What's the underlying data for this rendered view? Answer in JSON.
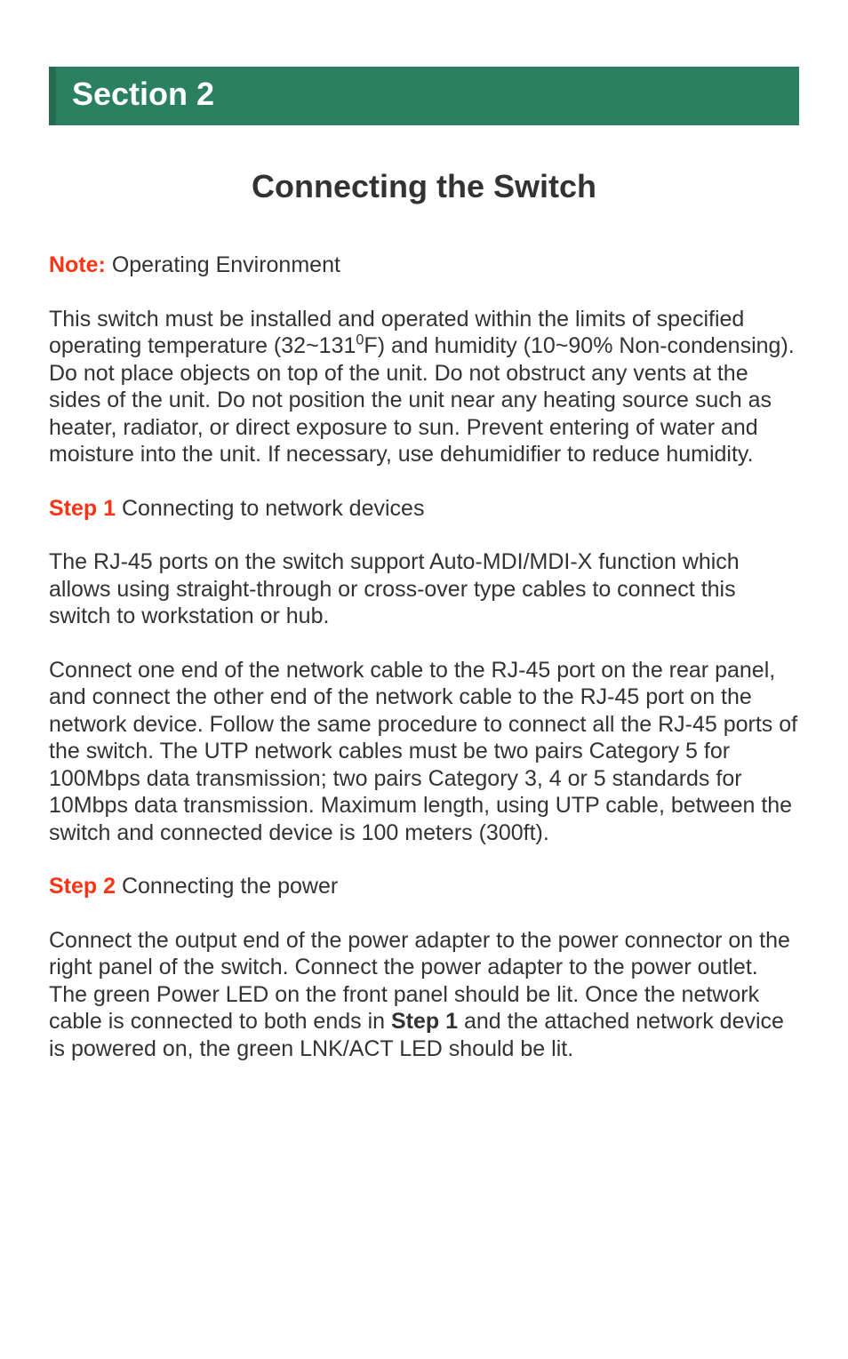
{
  "colors": {
    "banner_bg": "#2a8060",
    "banner_border": "#246b51",
    "banner_text": "#ffffff",
    "body_text": "#333333",
    "accent_red": "#fa3516",
    "page_bg": "#ffffff"
  },
  "typography": {
    "banner_fontsize": 36,
    "title_fontsize": 36,
    "body_fontsize": 25,
    "line_height": 1.22
  },
  "banner": {
    "label": "Section 2"
  },
  "title": "Connecting the Switch",
  "note": {
    "label": "Note:",
    "heading": " Operating Environment",
    "body_pre": "This switch must be installed and operated within the limits of specified operating temperature (32~131",
    "body_sup": "0",
    "body_post": "F) and humidity (10~90% Non-condensing). Do not place objects on top of the unit. Do not obstruct any vents at the sides of the unit. Do not position the unit near any heating source such as heater, radiator, or direct exposure to sun. Prevent entering of water and moisture into the unit. If necessary, use dehumidifier to reduce humidity."
  },
  "step1": {
    "label": "Step 1",
    "heading": " Connecting to network devices",
    "para1": "The RJ-45 ports on the switch support Auto-MDI/MDI-X function which allows using straight-through or cross-over type cables to connect this switch to workstation or hub.",
    "para2": "Connect one end of the network cable to the RJ-45 port on the rear panel, and connect the other end of the network cable to the RJ-45 port on the network device. Follow the same procedure to connect all the RJ-45 ports of the switch. The UTP network cables must be two pairs Category 5 for 100Mbps data transmission; two pairs Category 3, 4 or 5 standards for 10Mbps data transmission. Maximum length, using UTP cable, between the switch and connected device is 100 meters (300ft)."
  },
  "step2": {
    "label": "Step 2",
    "heading": " Connecting the power",
    "para_pre": "Connect the output end of the power adapter to the power connector on the right panel of the switch. Connect the power adapter to the power outlet. The green Power LED on the front panel should be lit. Once the network cable is connected to both ends in ",
    "para_bold": "Step 1",
    "para_post": " and the attached network device is powered on, the green LNK/ACT LED should be lit."
  }
}
